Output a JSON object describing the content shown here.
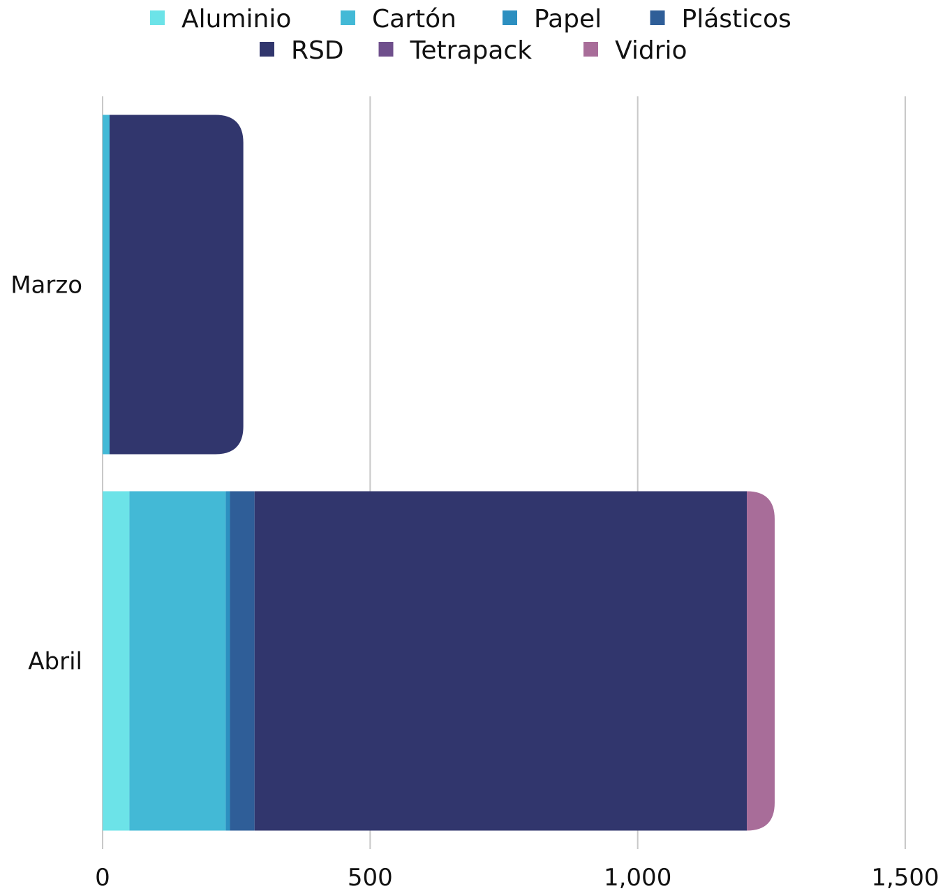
{
  "chart_data": {
    "type": "bar",
    "orientation": "horizontal",
    "stacked": true,
    "title": "",
    "xlabel": "",
    "ylabel": "",
    "categories": [
      "Marzo",
      "Abril"
    ],
    "xlim": [
      0,
      1500
    ],
    "x_ticks": [
      0,
      500,
      1000,
      1500
    ],
    "x_tick_labels": [
      "0",
      "500",
      "1,000",
      "1,500"
    ],
    "grid": "vertical",
    "legend_position": "top",
    "series": [
      {
        "name": "Aluminio",
        "color": "#6ce3e8",
        "values": [
          0,
          50
        ]
      },
      {
        "name": "Cartón",
        "color": "#43b9d6",
        "values": [
          13,
          180
        ]
      },
      {
        "name": "Papel",
        "color": "#2c8fc0",
        "values": [
          0,
          8
        ]
      },
      {
        "name": "Plásticos",
        "color": "#2f5e98",
        "values": [
          0,
          46
        ]
      },
      {
        "name": "RSD",
        "color": "#31366d",
        "values": [
          250,
          920
        ]
      },
      {
        "name": "Tetrapack",
        "color": "#6f4f8c",
        "values": [
          0,
          0
        ]
      },
      {
        "name": "Vidrio",
        "color": "#a86d99",
        "values": [
          0,
          52
        ]
      }
    ]
  }
}
